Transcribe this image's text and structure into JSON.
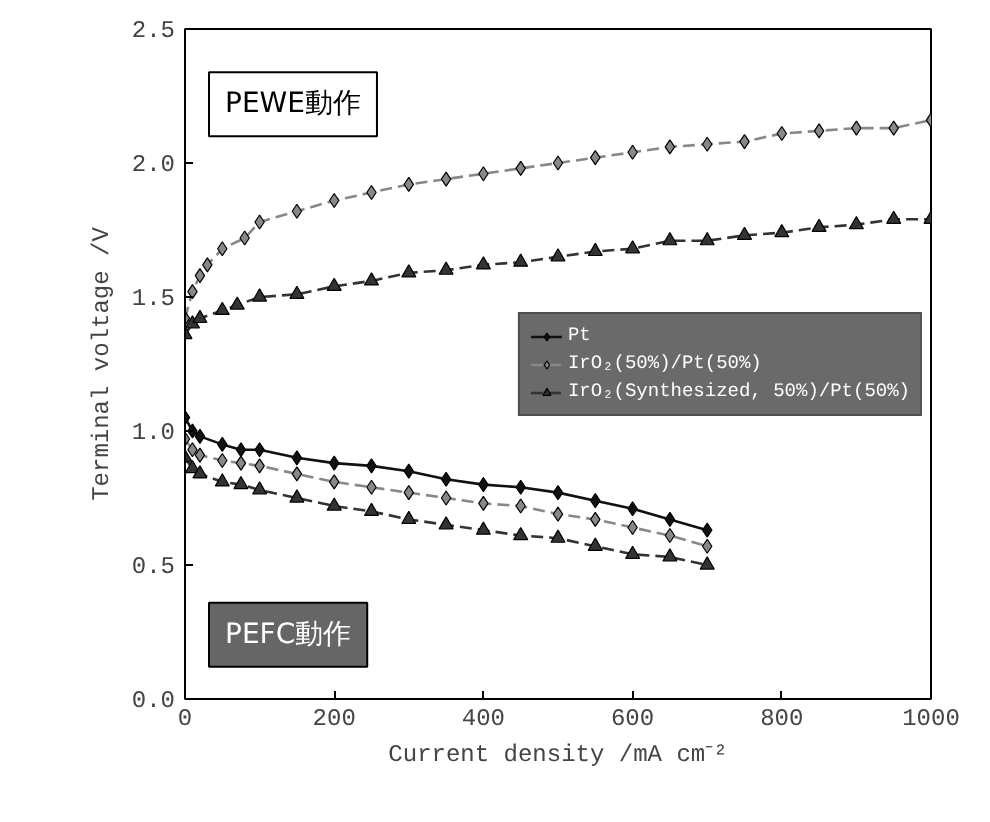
{
  "chart_data": {
    "type": "line",
    "xlabel": "Current density /mA cm⁻²",
    "ylabel": "Terminal voltage /V",
    "xlim": [
      0,
      1000
    ],
    "xticks": [
      0,
      200,
      400,
      600,
      800,
      1000
    ],
    "ylim": [
      0,
      2.5
    ],
    "yticks": [
      {
        "value": 0,
        "label": "0.0"
      },
      {
        "value": 0.5,
        "label": "0.5"
      },
      {
        "value": 1,
        "label": "1.0"
      },
      {
        "value": 1.5,
        "label": "1.5"
      },
      {
        "value": 2,
        "label": "2.0"
      },
      {
        "value": 2.5,
        "label": "2.5"
      }
    ],
    "grid": false,
    "legend": "right",
    "annotations": [
      "PEWE動作",
      "PEFC動作"
    ],
    "series": [
      {
        "name": "Pt",
        "color": "#111111",
        "marker": "diamond",
        "line_style": "solid",
        "x": [
          0,
          10,
          20,
          50,
          75,
          100,
          150,
          200,
          250,
          300,
          350,
          400,
          450,
          500,
          550,
          600,
          650,
          700
        ],
        "values": [
          1.05,
          1.0,
          0.98,
          0.95,
          0.93,
          0.93,
          0.9,
          0.88,
          0.87,
          0.85,
          0.82,
          0.8,
          0.79,
          0.77,
          0.74,
          0.71,
          0.67,
          0.63
        ]
      },
      {
        "name": "IrO₂(50%)/Pt(50%)",
        "color": "#888888",
        "marker": "diamond",
        "line_style": "dashed",
        "x": [
          0,
          10,
          20,
          50,
          75,
          100,
          150,
          200,
          250,
          300,
          350,
          400,
          450,
          500,
          550,
          600,
          650,
          700
        ],
        "values": [
          0.97,
          0.93,
          0.91,
          0.89,
          0.88,
          0.87,
          0.84,
          0.81,
          0.79,
          0.77,
          0.75,
          0.73,
          0.72,
          0.69,
          0.67,
          0.64,
          0.61,
          0.57
        ]
      },
      {
        "name": "IrO₂(Synthesized, 50%)/Pt(50%)",
        "color": "#333333",
        "marker": "triangle",
        "line_style": "dashed",
        "x": [
          0,
          10,
          20,
          50,
          75,
          100,
          150,
          200,
          250,
          300,
          350,
          400,
          450,
          500,
          550,
          600,
          650,
          700
        ],
        "values": [
          0.9,
          0.86,
          0.84,
          0.81,
          0.8,
          0.78,
          0.75,
          0.72,
          0.7,
          0.67,
          0.65,
          0.63,
          0.61,
          0.6,
          0.57,
          0.54,
          0.53,
          0.5
        ]
      },
      {
        "color": "#888888",
        "marker": "diamond",
        "line_style": "dashed",
        "x": [
          0,
          10,
          20,
          30,
          50,
          80,
          100,
          150,
          200,
          250,
          300,
          350,
          400,
          450,
          500,
          550,
          600,
          650,
          700,
          750,
          800,
          850,
          900,
          950,
          1000
        ],
        "values": [
          1.42,
          1.52,
          1.58,
          1.62,
          1.68,
          1.72,
          1.78,
          1.82,
          1.86,
          1.89,
          1.92,
          1.94,
          1.96,
          1.98,
          2.0,
          2.02,
          2.04,
          2.06,
          2.07,
          2.08,
          2.11,
          2.12,
          2.13,
          2.13,
          2.16
        ]
      },
      {
        "color": "#333333",
        "marker": "triangle",
        "line_style": "dashed",
        "x": [
          0,
          10,
          20,
          50,
          70,
          100,
          150,
          200,
          250,
          300,
          350,
          400,
          450,
          500,
          550,
          600,
          650,
          700,
          750,
          800,
          850,
          900,
          950,
          1000
        ],
        "values": [
          1.36,
          1.4,
          1.42,
          1.45,
          1.47,
          1.5,
          1.51,
          1.54,
          1.56,
          1.59,
          1.6,
          1.62,
          1.63,
          1.65,
          1.67,
          1.68,
          1.71,
          1.71,
          1.73,
          1.74,
          1.76,
          1.77,
          1.79,
          1.79
        ]
      }
    ]
  }
}
